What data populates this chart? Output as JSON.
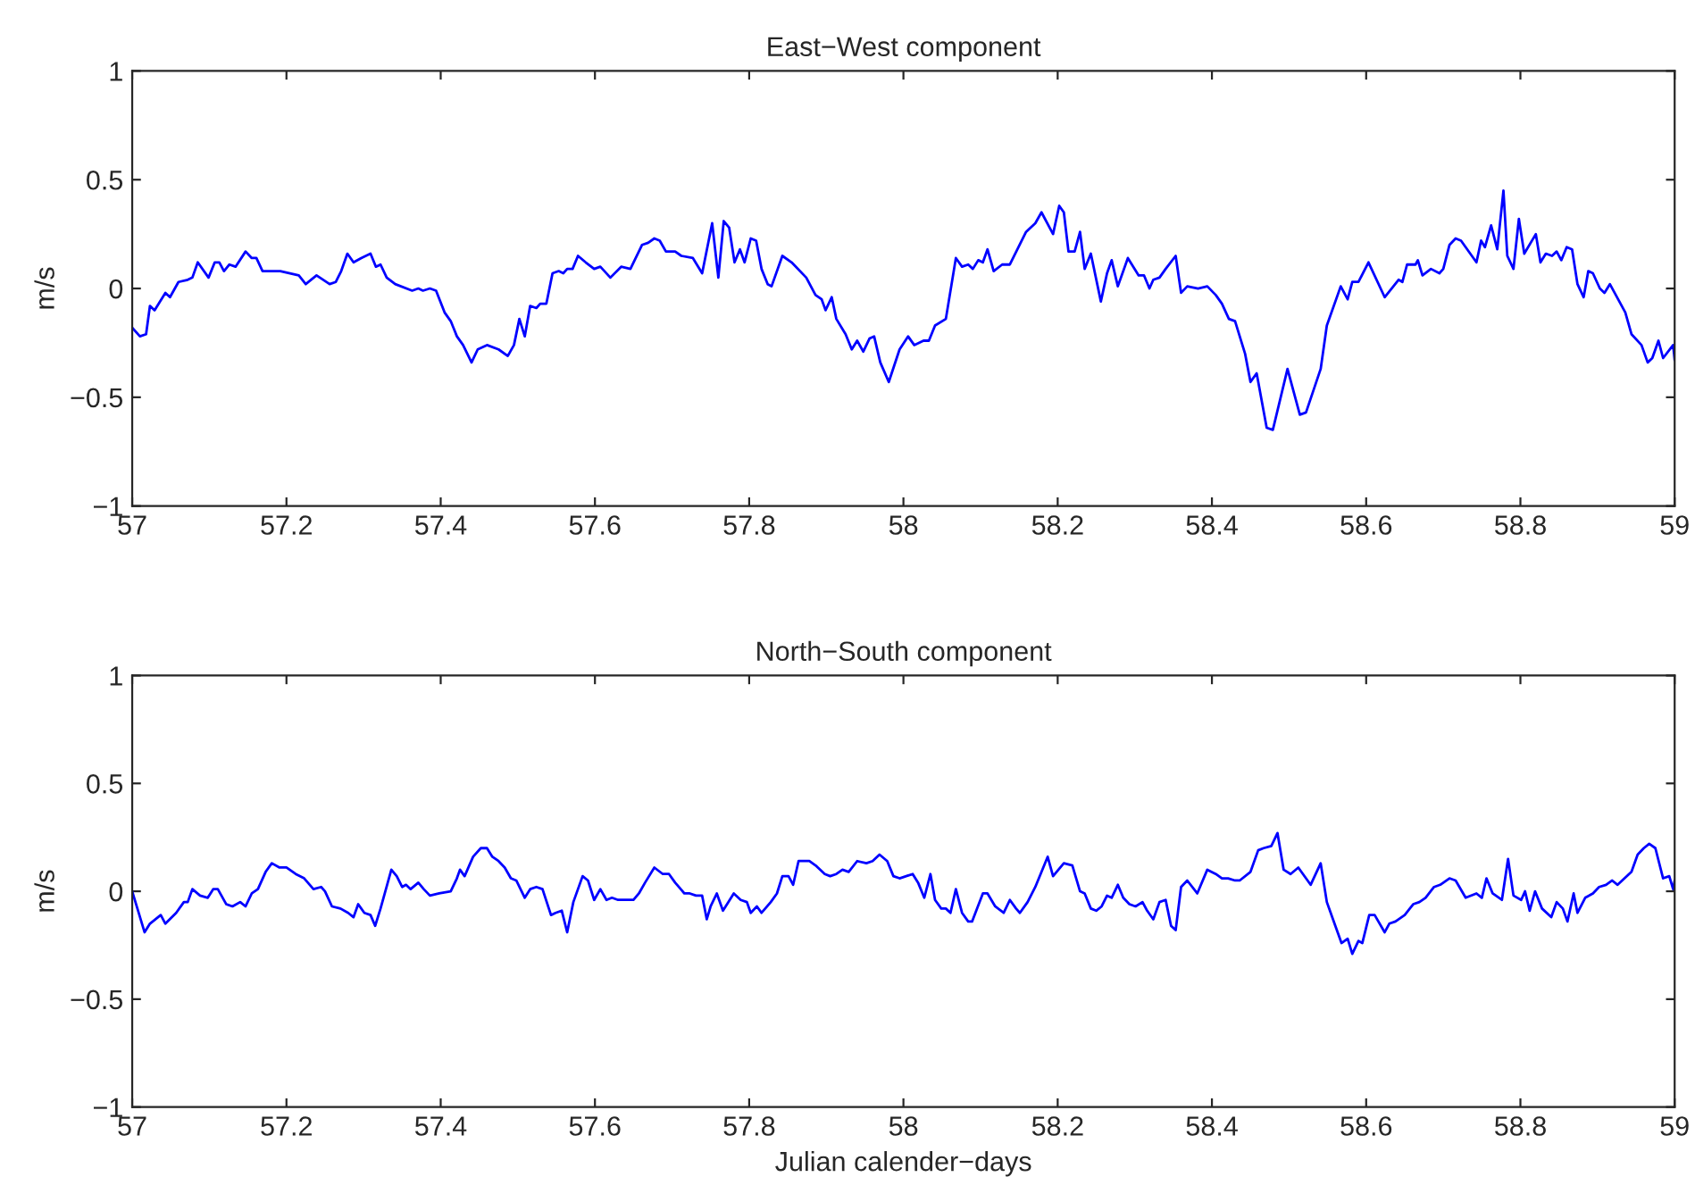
{
  "chart_data": [
    {
      "type": "line",
      "title": "East−West component",
      "ylabel": "m/s",
      "xlim": [
        57,
        59
      ],
      "ylim": [
        -1,
        1
      ],
      "xticks": [
        57,
        57.2,
        57.4,
        57.6,
        57.8,
        58,
        58.2,
        58.4,
        58.6,
        58.8,
        59
      ],
      "yticks": [
        -1,
        -0.5,
        0,
        0.5,
        1
      ],
      "marker": "none",
      "line_style": "solid",
      "series": [
        {
          "color": "#0000ff",
          "x": [
            57.0,
            57.01,
            57.018,
            57.023,
            57.029,
            57.043,
            57.049,
            57.06,
            57.072,
            57.078,
            57.085,
            57.099,
            57.107,
            57.113,
            57.119,
            57.126,
            57.134,
            57.147,
            57.155,
            57.161,
            57.169,
            57.192,
            57.216,
            57.225,
            57.239,
            57.256,
            57.264,
            57.271,
            57.279,
            57.287,
            57.297,
            57.309,
            57.316,
            57.322,
            57.33,
            57.341,
            57.363,
            57.371,
            57.377,
            57.386,
            57.394,
            57.405,
            57.413,
            57.421,
            57.429,
            57.44,
            57.448,
            57.46,
            57.475,
            57.487,
            57.495,
            57.502,
            57.509,
            57.516,
            57.524,
            57.529,
            57.537,
            57.545,
            57.553,
            57.559,
            57.564,
            57.571,
            57.578,
            57.588,
            57.599,
            57.607,
            57.62,
            57.634,
            57.646,
            57.661,
            57.669,
            57.677,
            57.684,
            57.692,
            57.704,
            57.712,
            57.727,
            57.739,
            57.752,
            57.76,
            57.767,
            57.774,
            57.781,
            57.788,
            57.794,
            57.802,
            57.809,
            57.816,
            57.824,
            57.829,
            57.843,
            57.855,
            57.874,
            57.886,
            57.894,
            57.899,
            57.907,
            57.913,
            57.925,
            57.933,
            57.94,
            57.948,
            57.956,
            57.962,
            57.97,
            57.981,
            57.995,
            58.006,
            58.014,
            58.026,
            58.033,
            58.041,
            58.055,
            58.068,
            58.076,
            58.084,
            58.09,
            58.097,
            58.103,
            58.109,
            58.117,
            58.128,
            58.138,
            58.159,
            58.171,
            58.179,
            58.194,
            58.202,
            58.208,
            58.214,
            58.222,
            58.229,
            58.235,
            58.243,
            58.256,
            58.264,
            58.27,
            58.278,
            58.291,
            58.305,
            58.312,
            58.319,
            58.324,
            58.332,
            58.34,
            58.353,
            58.36,
            58.368,
            58.382,
            58.394,
            58.405,
            58.413,
            58.422,
            58.43,
            58.443,
            58.45,
            58.458,
            58.471,
            58.479,
            58.498,
            58.514,
            58.522,
            58.541,
            58.549,
            58.567,
            58.576,
            58.582,
            58.59,
            58.603,
            58.624,
            58.642,
            58.647,
            58.653,
            58.664,
            58.667,
            58.673,
            58.684,
            58.695,
            58.7,
            58.708,
            58.716,
            58.723,
            58.743,
            58.749,
            58.754,
            58.762,
            58.77,
            58.778,
            58.783,
            58.791,
            58.798,
            58.805,
            58.82,
            58.826,
            58.833,
            58.841,
            58.847,
            58.853,
            58.86,
            58.867,
            58.874,
            58.882,
            58.888,
            58.894,
            58.903,
            58.909,
            58.916,
            58.936,
            58.944,
            58.957,
            58.965,
            58.971,
            58.979,
            58.985,
            58.998,
            59.0
          ],
          "values": [
            -0.18,
            -0.22,
            -0.21,
            -0.08,
            -0.1,
            -0.02,
            -0.04,
            0.03,
            0.04,
            0.05,
            0.12,
            0.05,
            0.12,
            0.12,
            0.08,
            0.11,
            0.1,
            0.17,
            0.14,
            0.14,
            0.08,
            0.08,
            0.06,
            0.02,
            0.06,
            0.02,
            0.03,
            0.08,
            0.16,
            0.12,
            0.14,
            0.16,
            0.1,
            0.11,
            0.05,
            0.02,
            -0.01,
            0.0,
            -0.01,
            0.0,
            -0.01,
            -0.11,
            -0.15,
            -0.22,
            -0.26,
            -0.34,
            -0.28,
            -0.26,
            -0.28,
            -0.31,
            -0.26,
            -0.14,
            -0.22,
            -0.08,
            -0.09,
            -0.07,
            -0.07,
            0.07,
            0.08,
            0.07,
            0.09,
            0.09,
            0.15,
            0.12,
            0.09,
            0.1,
            0.05,
            0.1,
            0.09,
            0.2,
            0.21,
            0.23,
            0.22,
            0.17,
            0.17,
            0.15,
            0.14,
            0.07,
            0.3,
            0.05,
            0.31,
            0.28,
            0.12,
            0.18,
            0.12,
            0.23,
            0.22,
            0.09,
            0.02,
            0.01,
            0.15,
            0.12,
            0.05,
            -0.03,
            -0.05,
            -0.1,
            -0.04,
            -0.14,
            -0.21,
            -0.28,
            -0.24,
            -0.29,
            -0.23,
            -0.22,
            -0.34,
            -0.43,
            -0.28,
            -0.22,
            -0.26,
            -0.24,
            -0.24,
            -0.17,
            -0.14,
            0.14,
            0.1,
            0.11,
            0.09,
            0.13,
            0.12,
            0.18,
            0.08,
            0.11,
            0.11,
            0.26,
            0.3,
            0.35,
            0.25,
            0.38,
            0.35,
            0.17,
            0.17,
            0.26,
            0.09,
            0.16,
            -0.06,
            0.07,
            0.13,
            0.01,
            0.14,
            0.06,
            0.06,
            0.0,
            0.04,
            0.05,
            0.09,
            0.15,
            -0.02,
            0.01,
            0.0,
            0.01,
            -0.03,
            -0.07,
            -0.14,
            -0.15,
            -0.3,
            -0.43,
            -0.39,
            -0.64,
            -0.65,
            -0.37,
            -0.58,
            -0.57,
            -0.37,
            -0.17,
            0.01,
            -0.05,
            0.03,
            0.03,
            0.12,
            -0.04,
            0.04,
            0.03,
            0.11,
            0.11,
            0.13,
            0.06,
            0.09,
            0.07,
            0.09,
            0.2,
            0.23,
            0.22,
            0.12,
            0.22,
            0.19,
            0.29,
            0.18,
            0.45,
            0.15,
            0.09,
            0.32,
            0.16,
            0.25,
            0.12,
            0.16,
            0.15,
            0.17,
            0.13,
            0.19,
            0.18,
            0.02,
            -0.04,
            0.08,
            0.07,
            0.0,
            -0.02,
            0.02,
            -0.11,
            -0.21,
            -0.26,
            -0.34,
            -0.32,
            -0.24,
            -0.32,
            -0.26,
            -0.33
          ]
        }
      ]
    },
    {
      "type": "line",
      "title": "North−South component",
      "ylabel": "m/s",
      "xlabel": "Julian calender−days",
      "xlim": [
        57,
        59
      ],
      "ylim": [
        -1,
        1
      ],
      "xticks": [
        57,
        57.2,
        57.4,
        57.6,
        57.8,
        58,
        58.2,
        58.4,
        58.6,
        58.8,
        59
      ],
      "yticks": [
        -1,
        -0.5,
        0,
        0.5,
        1
      ],
      "marker": "none",
      "line_style": "solid",
      "series": [
        {
          "color": "#0000ff",
          "x": [
            57.0,
            57.016,
            57.023,
            57.037,
            57.043,
            57.057,
            57.067,
            57.072,
            57.078,
            57.088,
            57.098,
            57.105,
            57.111,
            57.122,
            57.13,
            57.14,
            57.147,
            57.155,
            57.163,
            57.173,
            57.181,
            57.191,
            57.2,
            57.212,
            57.223,
            57.235,
            57.245,
            57.25,
            57.259,
            57.27,
            57.28,
            57.287,
            57.293,
            57.301,
            57.309,
            57.315,
            57.322,
            57.336,
            57.343,
            57.35,
            57.355,
            57.361,
            57.371,
            57.378,
            57.386,
            57.398,
            57.413,
            57.421,
            57.425,
            57.431,
            57.442,
            57.452,
            57.46,
            57.467,
            57.475,
            57.483,
            57.491,
            57.498,
            57.509,
            57.516,
            57.524,
            57.532,
            57.543,
            57.549,
            57.557,
            57.564,
            57.572,
            57.584,
            57.591,
            57.599,
            57.607,
            57.615,
            57.622,
            57.63,
            57.65,
            57.657,
            57.665,
            57.677,
            57.688,
            57.696,
            57.704,
            57.716,
            57.723,
            57.731,
            57.739,
            57.745,
            57.75,
            57.758,
            57.766,
            57.78,
            57.789,
            57.797,
            57.802,
            57.81,
            57.816,
            57.828,
            57.836,
            57.843,
            57.851,
            57.857,
            57.864,
            57.878,
            57.886,
            57.898,
            57.905,
            57.913,
            57.921,
            57.929,
            57.94,
            57.952,
            57.96,
            57.969,
            57.979,
            57.987,
            57.995,
            58.012,
            58.019,
            58.027,
            58.035,
            58.041,
            58.049,
            58.055,
            58.061,
            58.068,
            58.076,
            58.084,
            58.089,
            58.103,
            58.109,
            58.119,
            58.13,
            58.138,
            58.146,
            58.151,
            58.161,
            58.171,
            58.187,
            58.194,
            58.208,
            58.219,
            58.229,
            58.235,
            58.243,
            58.25,
            58.257,
            58.264,
            58.27,
            58.278,
            58.285,
            58.293,
            58.301,
            58.31,
            58.316,
            58.324,
            58.332,
            58.34,
            58.347,
            58.353,
            58.36,
            58.368,
            58.381,
            58.394,
            58.405,
            58.413,
            58.421,
            58.43,
            58.436,
            58.45,
            58.46,
            58.467,
            58.477,
            58.485,
            58.493,
            58.502,
            58.512,
            58.528,
            58.541,
            58.549,
            58.56,
            58.568,
            58.576,
            58.582,
            58.59,
            58.595,
            58.604,
            58.611,
            58.624,
            58.63,
            58.638,
            58.65,
            58.661,
            58.669,
            58.677,
            58.688,
            58.696,
            58.708,
            58.716,
            58.729,
            58.743,
            58.75,
            58.756,
            58.764,
            58.776,
            58.784,
            58.791,
            58.801,
            58.806,
            58.812,
            58.819,
            58.828,
            58.84,
            58.847,
            58.855,
            58.861,
            58.869,
            58.874,
            58.884,
            58.894,
            58.902,
            58.911,
            58.919,
            58.926,
            58.944,
            58.952,
            58.96,
            58.967,
            58.975,
            58.985,
            58.993,
            58.998,
            59.0
          ],
          "values": [
            0.0,
            -0.19,
            -0.15,
            -0.11,
            -0.15,
            -0.1,
            -0.05,
            -0.05,
            0.01,
            -0.02,
            -0.03,
            0.01,
            0.01,
            -0.06,
            -0.07,
            -0.05,
            -0.07,
            -0.01,
            0.01,
            0.09,
            0.13,
            0.11,
            0.11,
            0.08,
            0.06,
            0.01,
            0.02,
            0.0,
            -0.07,
            -0.08,
            -0.1,
            -0.12,
            -0.06,
            -0.1,
            -0.11,
            -0.16,
            -0.08,
            0.1,
            0.07,
            0.02,
            0.03,
            0.01,
            0.04,
            0.01,
            -0.02,
            -0.01,
            0.0,
            0.06,
            0.1,
            0.07,
            0.16,
            0.2,
            0.2,
            0.16,
            0.14,
            0.11,
            0.06,
            0.05,
            -0.03,
            0.01,
            0.02,
            0.01,
            -0.11,
            -0.1,
            -0.09,
            -0.19,
            -0.05,
            0.07,
            0.05,
            -0.04,
            0.01,
            -0.04,
            -0.03,
            -0.04,
            -0.04,
            -0.01,
            0.04,
            0.11,
            0.08,
            0.08,
            0.04,
            -0.01,
            -0.01,
            -0.02,
            -0.02,
            -0.13,
            -0.07,
            -0.01,
            -0.09,
            -0.01,
            -0.04,
            -0.05,
            -0.1,
            -0.07,
            -0.1,
            -0.05,
            -0.01,
            0.07,
            0.07,
            0.03,
            0.14,
            0.14,
            0.12,
            0.08,
            0.07,
            0.08,
            0.1,
            0.09,
            0.14,
            0.13,
            0.14,
            0.17,
            0.14,
            0.07,
            0.06,
            0.08,
            0.04,
            -0.03,
            0.08,
            -0.04,
            -0.08,
            -0.08,
            -0.1,
            0.01,
            -0.1,
            -0.14,
            -0.14,
            -0.01,
            -0.01,
            -0.07,
            -0.1,
            -0.04,
            -0.08,
            -0.1,
            -0.05,
            0.02,
            0.16,
            0.07,
            0.13,
            0.12,
            0.0,
            -0.01,
            -0.08,
            -0.09,
            -0.07,
            -0.02,
            -0.03,
            0.03,
            -0.03,
            -0.06,
            -0.07,
            -0.05,
            -0.09,
            -0.13,
            -0.05,
            -0.04,
            -0.16,
            -0.18,
            0.02,
            0.05,
            -0.01,
            0.1,
            0.08,
            0.06,
            0.06,
            0.05,
            0.05,
            0.09,
            0.19,
            0.2,
            0.21,
            0.27,
            0.1,
            0.08,
            0.11,
            0.03,
            0.13,
            -0.05,
            -0.16,
            -0.24,
            -0.22,
            -0.29,
            -0.23,
            -0.24,
            -0.11,
            -0.11,
            -0.19,
            -0.15,
            -0.14,
            -0.11,
            -0.06,
            -0.05,
            -0.03,
            0.02,
            0.03,
            0.06,
            0.05,
            -0.03,
            -0.01,
            -0.03,
            0.06,
            -0.01,
            -0.04,
            0.15,
            -0.02,
            -0.04,
            0.0,
            -0.09,
            0.0,
            -0.08,
            -0.12,
            -0.05,
            -0.08,
            -0.14,
            -0.01,
            -0.1,
            -0.03,
            -0.01,
            0.02,
            0.03,
            0.05,
            0.03,
            0.09,
            0.17,
            0.2,
            0.22,
            0.2,
            0.06,
            0.07,
            0.01,
            0.05
          ]
        }
      ]
    }
  ]
}
